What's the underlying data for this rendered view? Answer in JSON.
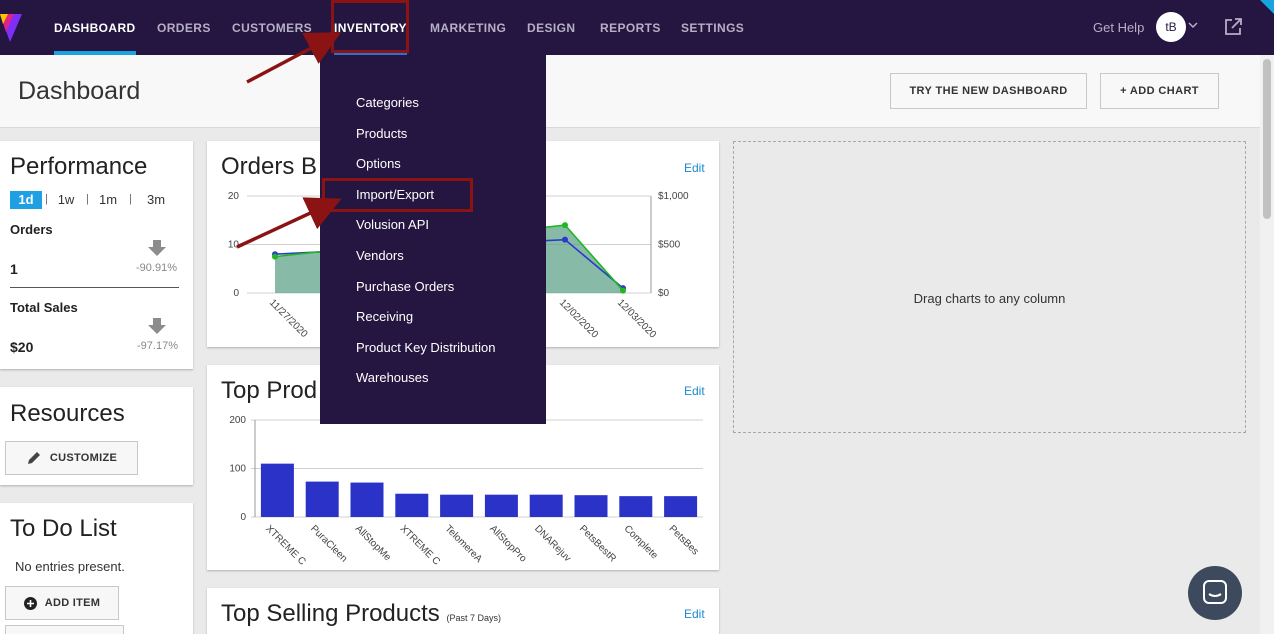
{
  "nav": {
    "items": [
      "DASHBOARD",
      "ORDERS",
      "CUSTOMERS",
      "INVENTORY",
      "MARKETING",
      "DESIGN",
      "REPORTS",
      "SETTINGS"
    ],
    "get_help": "Get Help",
    "avatar": "tB",
    "colors": {
      "bar": "#241640",
      "active_underline": "#19a4e0"
    }
  },
  "header": {
    "title": "Dashboard",
    "try_new_label": "TRY THE NEW DASHBOARD",
    "add_chart_label": "+ ADD CHART"
  },
  "performance": {
    "title": "Performance",
    "tabs": [
      "1d",
      "1w",
      "1m",
      "3m"
    ],
    "orders_label": "Orders",
    "orders_value": "1",
    "orders_pct": "-90.91%",
    "sales_label": "Total Sales",
    "sales_value": "$20",
    "sales_pct": "-97.17%"
  },
  "resources": {
    "title": "Resources",
    "customize_label": "CUSTOMIZE"
  },
  "todo": {
    "title": "To Do List",
    "empty": "No entries present.",
    "add_label": "ADD ITEM"
  },
  "orders_card": {
    "title": "Orders B",
    "edit": "Edit"
  },
  "top_products_card": {
    "title": "Top Prod",
    "edit": "Edit"
  },
  "top_selling_card": {
    "title": "Top Selling Products",
    "subtitle": "(Past 7 Days)",
    "edit": "Edit"
  },
  "drop_zone": {
    "text": "Drag charts to any column"
  },
  "inventory_menu": {
    "items": [
      "Categories",
      "Products",
      "Options",
      "Import/Export",
      "Volusion API",
      "Vendors",
      "Purchase Orders",
      "Receiving",
      "Product Key Distribution",
      "Warehouses"
    ]
  },
  "chart_data": [
    {
      "type": "line",
      "x": [
        "11/27/2020",
        "12/02/2020",
        "12/03/2020"
      ],
      "y_left_ticks": [
        "20",
        "10",
        "0"
      ],
      "y_right_ticks": [
        "$1,000",
        "$500",
        "$0"
      ],
      "ylim": [
        0,
        20
      ],
      "y2lim": [
        0,
        1000
      ],
      "series": [
        {
          "color": "#2b3ac9",
          "values": [
            8,
            11,
            1
          ]
        },
        {
          "color": "#22b722",
          "values": [
            7.5,
            14,
            0.5
          ]
        }
      ]
    },
    {
      "type": "bar",
      "categories": [
        "XTREME C",
        "PuraCleen",
        "AllStopMe",
        "XTREME C",
        "TelomereA",
        "AllStopPro",
        "DNARejuv",
        "PetsBestR",
        "Complete",
        "PetsBes"
      ],
      "values": [
        110,
        73,
        71,
        48,
        46,
        46,
        46,
        45,
        43,
        43
      ],
      "y_ticks": [
        "200",
        "100",
        "0"
      ],
      "ylim": [
        0,
        200
      ],
      "color": "#2b32c8"
    }
  ]
}
